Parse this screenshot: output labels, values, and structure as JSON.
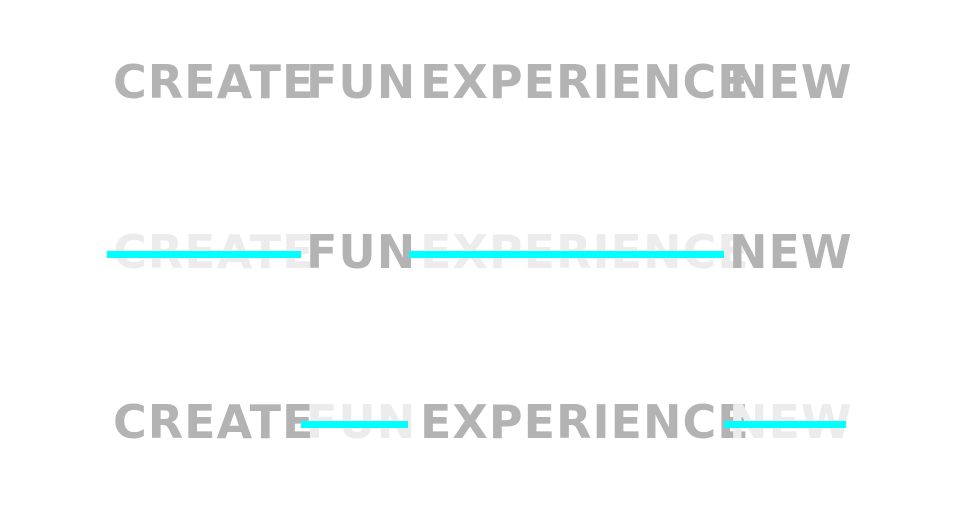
{
  "words": {
    "create": "CREATE",
    "fun": "FUN",
    "experience": "EXPERIENCE",
    "new": "NEW"
  },
  "colors": {
    "text": "#b3b3b3",
    "faded_text": "#ececec",
    "highlight": "#00ffff",
    "background": "#ffffff"
  }
}
